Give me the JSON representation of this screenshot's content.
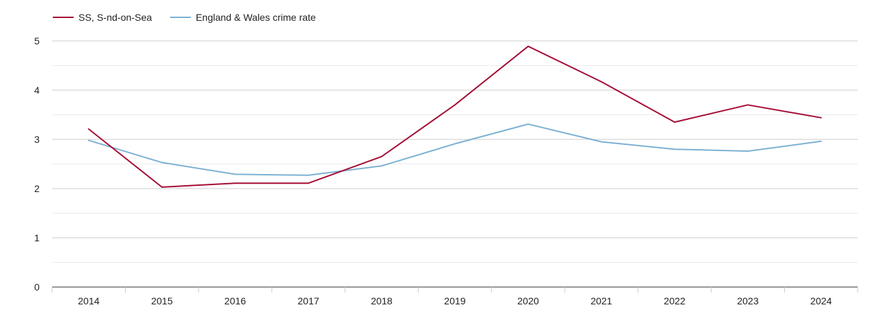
{
  "chart_data": {
    "type": "line",
    "x": [
      "2014",
      "2015",
      "2016",
      "2017",
      "2018",
      "2019",
      "2020",
      "2021",
      "2022",
      "2023",
      "2024"
    ],
    "series": [
      {
        "name": "SS, S-nd-on-Sea",
        "color": "#a50e35",
        "values": [
          3.21,
          2.03,
          2.11,
          2.11,
          2.65,
          3.7,
          4.89,
          4.17,
          3.35,
          3.7,
          3.44
        ]
      },
      {
        "name": "England & Wales crime rate",
        "color": "#7db1d3",
        "values": [
          2.98,
          2.53,
          2.29,
          2.27,
          2.46,
          2.91,
          3.31,
          2.95,
          2.8,
          2.76,
          2.96
        ]
      }
    ],
    "y_ticks": [
      "0",
      "1",
      "2",
      "3",
      "4",
      "5"
    ],
    "ylim": [
      0,
      5
    ],
    "grid": true,
    "legend_position": "top-left",
    "title": "",
    "xlabel": "",
    "ylabel": ""
  }
}
